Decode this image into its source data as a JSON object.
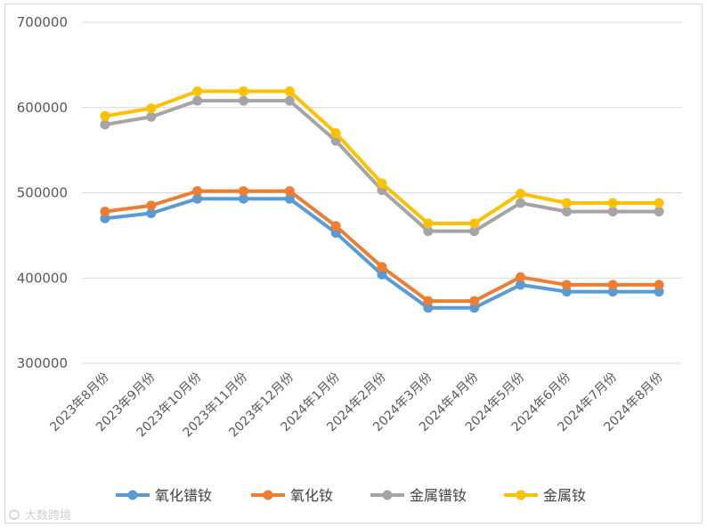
{
  "chart_data": {
    "type": "line",
    "categories": [
      "2023年8月份",
      "2023年9月份",
      "2023年10月份",
      "2023年11月份",
      "2023年12月份",
      "2024年1月份",
      "2024年2月份",
      "2024年3月份",
      "2024年4月份",
      "2024年5月份",
      "2024年6月份",
      "2024年7月份",
      "2024年8月份"
    ],
    "ylim": [
      300000,
      700000
    ],
    "yticks": [
      300000,
      400000,
      500000,
      600000,
      700000
    ],
    "ytick_labels": [
      "300000",
      "400000",
      "500000",
      "600000",
      "700000"
    ],
    "grid": true,
    "legend_position": "bottom",
    "series": [
      {
        "name": "氧化镨钕",
        "color": "#5b9bd5",
        "values": [
          470000,
          476000,
          493000,
          493000,
          493000,
          453000,
          404000,
          365000,
          365000,
          392000,
          384000,
          384000,
          384000
        ]
      },
      {
        "name": "氧化钕",
        "color": "#ed7d31",
        "values": [
          478000,
          485000,
          502000,
          502000,
          502000,
          461000,
          413000,
          373000,
          373000,
          401000,
          392000,
          392000,
          392000
        ]
      },
      {
        "name": "金属镨钕",
        "color": "#a5a5a5",
        "values": [
          580000,
          589000,
          608000,
          608000,
          608000,
          561000,
          503000,
          455000,
          455000,
          488000,
          478000,
          478000,
          478000
        ]
      },
      {
        "name": "金属钕",
        "color": "#ffc000",
        "values": [
          590000,
          599000,
          619000,
          619000,
          619000,
          570000,
          511000,
          464000,
          464000,
          499000,
          488000,
          488000,
          488000
        ]
      }
    ]
  },
  "watermark": "大数跨境"
}
